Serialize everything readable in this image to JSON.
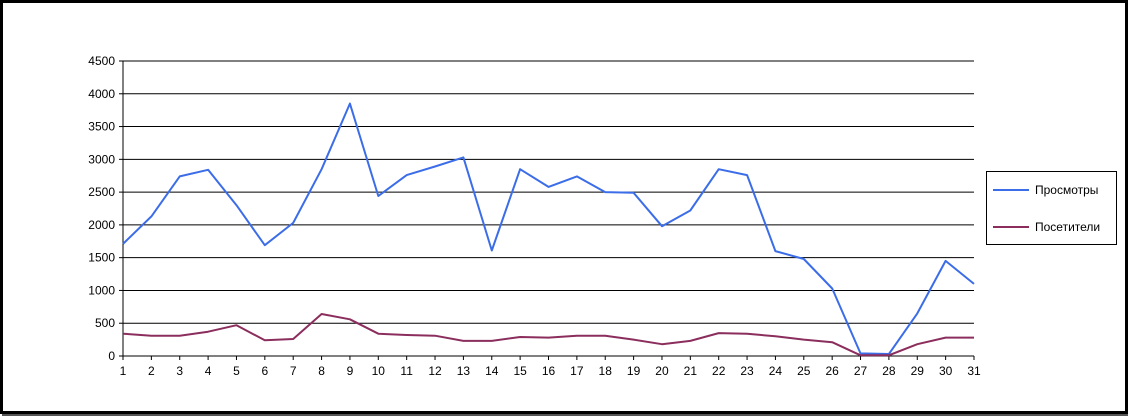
{
  "chart_data": {
    "type": "line",
    "title": "",
    "xlabel": "",
    "ylabel": "",
    "categories": [
      "1",
      "2",
      "3",
      "4",
      "5",
      "6",
      "7",
      "8",
      "9",
      "10",
      "11",
      "12",
      "13",
      "14",
      "15",
      "16",
      "17",
      "18",
      "19",
      "20",
      "21",
      "22",
      "23",
      "24",
      "25",
      "26",
      "27",
      "28",
      "29",
      "30",
      "31"
    ],
    "y_ticks": [
      "0",
      "500",
      "1000",
      "1500",
      "2000",
      "2500",
      "3000",
      "3500",
      "4000",
      "4500"
    ],
    "ylim": [
      0,
      4500
    ],
    "grid": "horizontal",
    "legend_position": "right",
    "series": [
      {
        "name": "Просмотры",
        "color": "#3c6de8",
        "values": [
          1710,
          2130,
          2740,
          2840,
          2300,
          1690,
          2030,
          2850,
          3850,
          2440,
          2760,
          2890,
          3030,
          1610,
          2850,
          2580,
          2740,
          2500,
          2490,
          1980,
          2220,
          2850,
          2760,
          1600,
          1480,
          1030,
          40,
          30,
          650,
          1450,
          1100
        ]
      },
      {
        "name": "Посетители",
        "color": "#8b2e5d",
        "values": [
          340,
          310,
          310,
          370,
          470,
          240,
          260,
          640,
          560,
          340,
          320,
          310,
          230,
          230,
          290,
          280,
          310,
          310,
          250,
          180,
          230,
          350,
          340,
          300,
          250,
          210,
          10,
          10,
          180,
          280,
          280
        ]
      }
    ]
  }
}
